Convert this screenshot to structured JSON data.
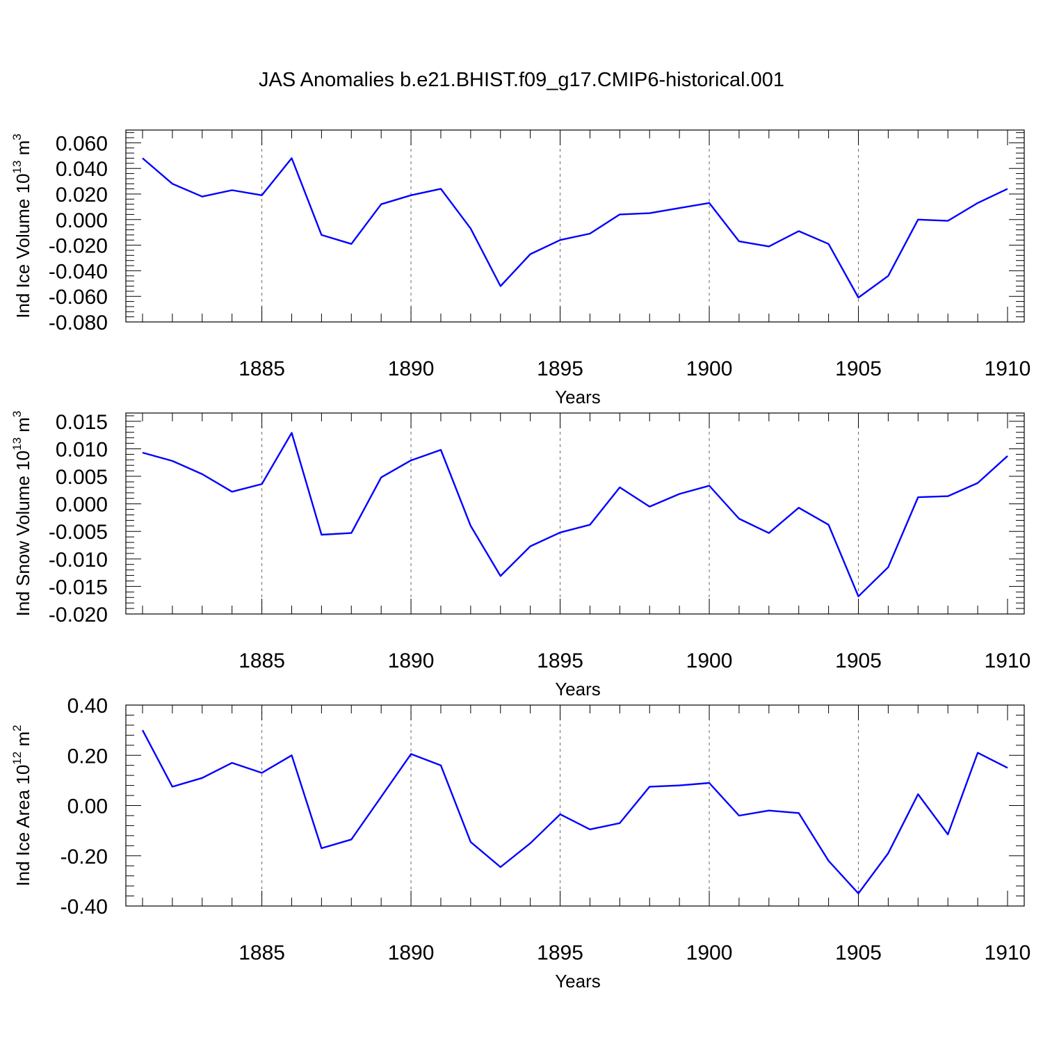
{
  "figure_title": "JAS Anomalies b.e21.BHIST.f09_g17.CMIP6-historical.001",
  "colors": {
    "line": "#0000ff",
    "grid": "#666666",
    "axis": "#000000"
  },
  "chart_data": [
    {
      "type": "line",
      "xlabel": "Years",
      "ylabel": "Ind Ice Volume 10",
      "ylabel_exp": "13",
      "ylabel_unit": " m",
      "ylabel_unit_exp": "3",
      "xlim": [
        1881,
        1910
      ],
      "ylim": [
        -0.08,
        0.07
      ],
      "xticks": [
        1885,
        1890,
        1895,
        1900,
        1905,
        1910
      ],
      "xtick_labels": [
        "1885",
        "1890",
        "1895",
        "1900",
        "1905",
        "1910"
      ],
      "yticks": [
        0.06,
        0.04,
        0.02,
        0.0,
        -0.02,
        -0.04,
        -0.06,
        -0.08
      ],
      "ytick_labels": [
        "0.060",
        "0.040",
        "0.020",
        "0.000",
        "-0.020",
        "-0.040",
        "-0.060",
        "-0.080"
      ],
      "grid": "x-dashed",
      "x": [
        1881,
        1882,
        1883,
        1884,
        1885,
        1886,
        1887,
        1888,
        1889,
        1890,
        1891,
        1892,
        1893,
        1894,
        1895,
        1896,
        1897,
        1898,
        1899,
        1900,
        1901,
        1902,
        1903,
        1904,
        1905,
        1906,
        1907,
        1908,
        1909,
        1910
      ],
      "values": [
        0.048,
        0.028,
        0.018,
        0.023,
        0.019,
        0.048,
        -0.012,
        -0.019,
        0.012,
        0.019,
        0.024,
        -0.007,
        -0.052,
        -0.027,
        -0.016,
        -0.011,
        0.004,
        0.005,
        0.009,
        0.013,
        -0.017,
        -0.021,
        -0.009,
        -0.019,
        -0.061,
        -0.044,
        0.0,
        -0.001,
        0.013,
        0.024
      ]
    },
    {
      "type": "line",
      "xlabel": "Years",
      "ylabel": "Ind Snow Volume 10",
      "ylabel_exp": "13",
      "ylabel_unit": " m",
      "ylabel_unit_exp": "3",
      "xlim": [
        1881,
        1910
      ],
      "ylim": [
        -0.02,
        0.0165
      ],
      "xticks": [
        1885,
        1890,
        1895,
        1900,
        1905,
        1910
      ],
      "xtick_labels": [
        "1885",
        "1890",
        "1895",
        "1900",
        "1905",
        "1910"
      ],
      "yticks": [
        0.015,
        0.01,
        0.005,
        0.0,
        -0.005,
        -0.01,
        -0.015,
        -0.02
      ],
      "ytick_labels": [
        "0.015",
        "0.010",
        "0.005",
        "0.000",
        "-0.005",
        "-0.010",
        "-0.015",
        "-0.020"
      ],
      "grid": "x-dashed",
      "x": [
        1881,
        1882,
        1883,
        1884,
        1885,
        1886,
        1887,
        1888,
        1889,
        1890,
        1891,
        1892,
        1893,
        1894,
        1895,
        1896,
        1897,
        1898,
        1899,
        1900,
        1901,
        1902,
        1903,
        1904,
        1905,
        1906,
        1907,
        1908,
        1909,
        1910
      ],
      "values": [
        0.0093,
        0.0078,
        0.0054,
        0.0022,
        0.0036,
        0.0129,
        -0.0056,
        -0.0053,
        0.0048,
        0.0079,
        0.0098,
        -0.004,
        -0.0131,
        -0.0077,
        -0.0052,
        -0.0038,
        0.003,
        -0.0005,
        0.0018,
        0.0033,
        -0.0027,
        -0.0053,
        -0.0007,
        -0.0038,
        -0.0168,
        -0.0115,
        0.0012,
        0.0014,
        0.0038,
        0.0087
      ]
    },
    {
      "type": "line",
      "xlabel": "Years",
      "ylabel": "Ind Ice Area 10",
      "ylabel_exp": "12",
      "ylabel_unit": " m",
      "ylabel_unit_exp": "2",
      "xlim": [
        1881,
        1910
      ],
      "ylim": [
        -0.4,
        0.4
      ],
      "xticks": [
        1885,
        1890,
        1895,
        1900,
        1905,
        1910
      ],
      "xtick_labels": [
        "1885",
        "1890",
        "1895",
        "1900",
        "1905",
        "1910"
      ],
      "yticks": [
        0.4,
        0.2,
        0.0,
        -0.2,
        -0.4
      ],
      "ytick_labels": [
        "0.40",
        "0.20",
        "0.00",
        "-0.20",
        "-0.40"
      ],
      "grid": "x-dashed",
      "x": [
        1881,
        1882,
        1883,
        1884,
        1885,
        1886,
        1887,
        1888,
        1889,
        1890,
        1891,
        1892,
        1893,
        1894,
        1895,
        1896,
        1897,
        1898,
        1899,
        1900,
        1901,
        1902,
        1903,
        1904,
        1905,
        1906,
        1907,
        1908,
        1909,
        1910
      ],
      "values": [
        0.3,
        0.075,
        0.11,
        0.17,
        0.13,
        0.2,
        -0.17,
        -0.135,
        0.035,
        0.205,
        0.16,
        -0.145,
        -0.245,
        -0.15,
        -0.035,
        -0.095,
        -0.07,
        0.075,
        0.08,
        0.09,
        -0.04,
        -0.02,
        -0.03,
        -0.22,
        -0.35,
        -0.19,
        0.045,
        -0.115,
        0.21,
        0.15
      ]
    }
  ]
}
